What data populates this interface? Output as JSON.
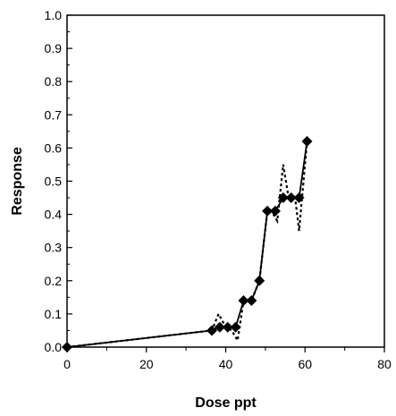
{
  "chart_data": {
    "type": "line",
    "title": "",
    "xlabel": "Dose ppt",
    "ylabel": "Response",
    "xlim": [
      0,
      80
    ],
    "ylim": [
      0,
      1.0
    ],
    "x_ticks": [
      0,
      20,
      40,
      60,
      80
    ],
    "y_ticks": [
      0.0,
      0.1,
      0.2,
      0.3,
      0.4,
      0.5,
      0.6,
      0.7,
      0.8,
      0.9,
      1.0
    ],
    "x_tick_labels": [
      "0",
      "20",
      "40",
      "60",
      "80"
    ],
    "y_tick_labels": [
      "0.0",
      "0.1",
      "0.2",
      "0.3",
      "0.4",
      "0.5",
      "0.6",
      "0.7",
      "0.8",
      "0.9",
      "1.0"
    ],
    "grid": false,
    "legend": "none",
    "series": [
      {
        "style": "solid-with-diamond-markers",
        "color": "#000000",
        "x": [
          0,
          36.5,
          38.5,
          40.5,
          42.5,
          44.5,
          46.5,
          48.5,
          50.5,
          52.5,
          54.5,
          56.5,
          58.5,
          60.5
        ],
        "y": [
          0.0,
          0.05,
          0.06,
          0.06,
          0.06,
          0.14,
          0.14,
          0.2,
          0.41,
          0.41,
          0.45,
          0.45,
          0.45,
          0.62
        ]
      },
      {
        "style": "dashed",
        "color": "#000000",
        "x": [
          0,
          36.5,
          38.2,
          40.0,
          41.5,
          43.0,
          44.5,
          46.5,
          48.5,
          50.5,
          52.0,
          53.0,
          54.5,
          56.0,
          57.5,
          58.5,
          60.5
        ],
        "y": [
          0.0,
          0.05,
          0.1,
          0.06,
          0.05,
          0.02,
          0.14,
          0.14,
          0.2,
          0.41,
          0.4,
          0.38,
          0.55,
          0.44,
          0.45,
          0.35,
          0.62
        ]
      }
    ]
  }
}
